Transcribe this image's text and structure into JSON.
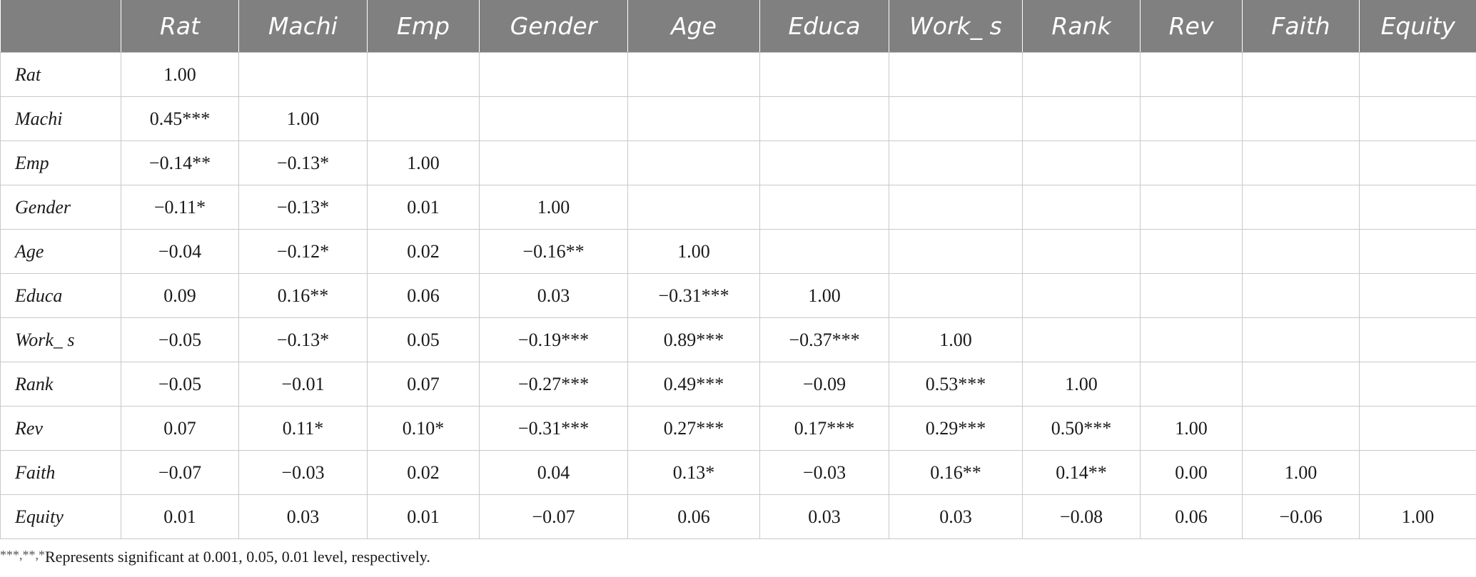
{
  "table": {
    "columns": [
      "",
      "Rat",
      "Machi",
      "Emp",
      "Gender",
      "Age",
      "Educa",
      "Work_ s",
      "Rank",
      "Rev",
      "Faith",
      "Equity"
    ],
    "rows": [
      {
        "label": "Rat",
        "cells": [
          "1.00",
          "",
          "",
          "",
          "",
          "",
          "",
          "",
          "",
          "",
          ""
        ]
      },
      {
        "label": "Machi",
        "cells": [
          "0.45***",
          "1.00",
          "",
          "",
          "",
          "",
          "",
          "",
          "",
          "",
          ""
        ]
      },
      {
        "label": "Emp",
        "cells": [
          "−0.14**",
          "−0.13*",
          "1.00",
          "",
          "",
          "",
          "",
          "",
          "",
          "",
          ""
        ]
      },
      {
        "label": "Gender",
        "cells": [
          "−0.11*",
          "−0.13*",
          "0.01",
          "1.00",
          "",
          "",
          "",
          "",
          "",
          "",
          ""
        ]
      },
      {
        "label": "Age",
        "cells": [
          "−0.04",
          "−0.12*",
          "0.02",
          "−0.16**",
          "1.00",
          "",
          "",
          "",
          "",
          "",
          ""
        ]
      },
      {
        "label": "Educa",
        "cells": [
          "0.09",
          "0.16**",
          "0.06",
          "0.03",
          "−0.31***",
          "1.00",
          "",
          "",
          "",
          "",
          ""
        ]
      },
      {
        "label": "Work_ s",
        "cells": [
          "−0.05",
          "−0.13*",
          "0.05",
          "−0.19***",
          "0.89***",
          "−0.37***",
          "1.00",
          "",
          "",
          "",
          ""
        ]
      },
      {
        "label": "Rank",
        "cells": [
          "−0.05",
          "−0.01",
          "0.07",
          "−0.27***",
          "0.49***",
          "−0.09",
          "0.53***",
          "1.00",
          "",
          "",
          ""
        ]
      },
      {
        "label": "Rev",
        "cells": [
          "0.07",
          "0.11*",
          "0.10*",
          "−0.31***",
          "0.27***",
          "0.17***",
          "0.29***",
          "0.50***",
          "1.00",
          "",
          ""
        ]
      },
      {
        "label": "Faith",
        "cells": [
          "−0.07",
          "−0.03",
          "0.02",
          "0.04",
          "0.13*",
          "−0.03",
          "0.16**",
          "0.14**",
          "0.00",
          "1.00",
          ""
        ]
      },
      {
        "label": "Equity",
        "cells": [
          "0.01",
          "0.03",
          "0.01",
          "−0.07",
          "0.06",
          "0.03",
          "0.03",
          "−0.08",
          "0.06",
          "−0.06",
          "1.00"
        ]
      }
    ]
  },
  "note": {
    "stars": "***,**,*",
    "text": "Represents significant at 0.001, 0.05, 0.01 level, respectively."
  }
}
